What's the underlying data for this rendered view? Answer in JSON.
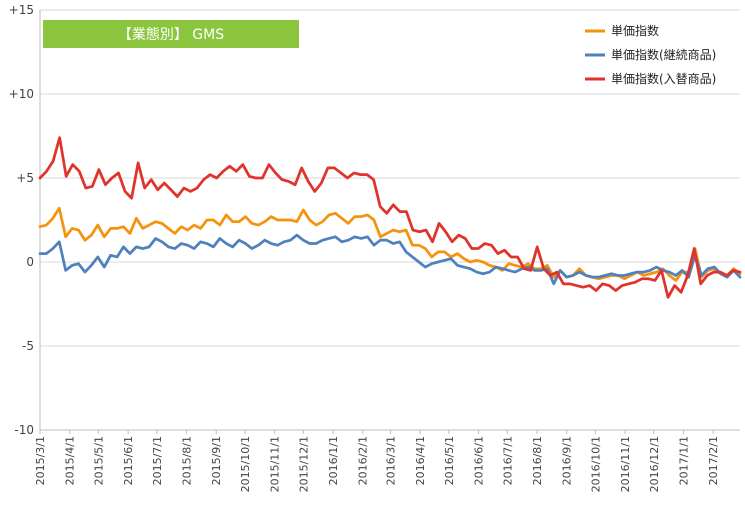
{
  "chart_data": {
    "type": "line",
    "title": "【業態別】 GMS",
    "title_bg_color": "#8CC63F",
    "ylim": [
      -10,
      15
    ],
    "yticks": [
      {
        "value": 15,
        "label": "+15"
      },
      {
        "value": 10,
        "label": "+10"
      },
      {
        "value": 5,
        "label": "+5"
      },
      {
        "value": 0,
        "label": "0"
      },
      {
        "value": -5,
        "label": "-5"
      },
      {
        "value": -10,
        "label": "-10"
      }
    ],
    "grid": true,
    "legend_position": "top-right",
    "x_start": "2015/3/1",
    "x_end": "2017/3/1",
    "x_ticks": [
      "2015/3/1",
      "2015/4/1",
      "2015/5/1",
      "2015/6/1",
      "2015/7/1",
      "2015/8/1",
      "2015/9/1",
      "2015/10/1",
      "2015/11/1",
      "2015/12/1",
      "2016/1/1",
      "2016/2/1",
      "2016/3/1",
      "2016/4/1",
      "2016/5/1",
      "2016/6/1",
      "2016/7/1",
      "2016/8/1",
      "2016/9/1",
      "2016/10/1",
      "2016/11/1",
      "2016/12/1",
      "2017/1/1",
      "2017/2/1"
    ],
    "series": [
      {
        "name": "単価指数",
        "color": "#F5930F",
        "values": [
          2.1,
          2.2,
          2.6,
          3.2,
          1.5,
          2.0,
          1.9,
          1.3,
          1.6,
          2.2,
          1.5,
          2.0,
          2.0,
          2.1,
          1.7,
          2.6,
          2.0,
          2.2,
          2.4,
          2.3,
          2.0,
          1.7,
          2.1,
          1.9,
          2.2,
          2.0,
          2.5,
          2.5,
          2.2,
          2.8,
          2.4,
          2.4,
          2.7,
          2.3,
          2.2,
          2.4,
          2.7,
          2.5,
          2.5,
          2.5,
          2.4,
          3.1,
          2.5,
          2.2,
          2.4,
          2.8,
          2.9,
          2.6,
          2.3,
          2.7,
          2.7,
          2.8,
          2.5,
          1.5,
          1.7,
          1.9,
          1.8,
          1.9,
          1.0,
          1.0,
          0.8,
          0.3,
          0.6,
          0.6,
          0.3,
          0.5,
          0.2,
          0.0,
          0.1,
          0.0,
          -0.2,
          -0.3,
          -0.5,
          -0.1,
          -0.2,
          -0.3,
          -0.1,
          -0.4,
          -0.4,
          -0.2,
          -0.9,
          -0.5,
          -0.9,
          -0.8,
          -0.4,
          -0.8,
          -0.9,
          -1.0,
          -0.9,
          -0.8,
          -0.8,
          -1.0,
          -0.8,
          -0.6,
          -0.8,
          -0.7,
          -0.6,
          -0.4,
          -0.8,
          -1.1,
          -0.6,
          -0.6,
          0.8,
          -0.9,
          -0.5,
          -0.4,
          -0.7,
          -0.8,
          -0.4,
          -0.7
        ]
      },
      {
        "name": "単価指数(継続商品)",
        "color": "#4F81BD",
        "values": [
          0.5,
          0.5,
          0.8,
          1.2,
          -0.5,
          -0.2,
          -0.1,
          -0.6,
          -0.2,
          0.3,
          -0.3,
          0.4,
          0.3,
          0.9,
          0.5,
          0.9,
          0.8,
          0.9,
          1.4,
          1.2,
          0.9,
          0.8,
          1.1,
          1.0,
          0.8,
          1.2,
          1.1,
          0.9,
          1.4,
          1.1,
          0.9,
          1.3,
          1.1,
          0.8,
          1.0,
          1.3,
          1.1,
          1.0,
          1.2,
          1.3,
          1.6,
          1.3,
          1.1,
          1.1,
          1.3,
          1.4,
          1.5,
          1.2,
          1.3,
          1.5,
          1.4,
          1.5,
          1.0,
          1.3,
          1.3,
          1.1,
          1.2,
          0.6,
          0.3,
          0.0,
          -0.3,
          -0.1,
          0.0,
          0.1,
          0.2,
          -0.2,
          -0.3,
          -0.4,
          -0.6,
          -0.7,
          -0.6,
          -0.3,
          -0.4,
          -0.5,
          -0.6,
          -0.4,
          -0.3,
          -0.5,
          -0.5,
          -0.4,
          -1.3,
          -0.5,
          -0.9,
          -0.8,
          -0.6,
          -0.8,
          -0.9,
          -0.9,
          -0.8,
          -0.7,
          -0.8,
          -0.8,
          -0.7,
          -0.6,
          -0.6,
          -0.5,
          -0.3,
          -0.5,
          -0.6,
          -0.8,
          -0.5,
          -0.9,
          0.4,
          -0.8,
          -0.4,
          -0.3,
          -0.7,
          -0.9,
          -0.5,
          -0.9
        ]
      },
      {
        "name": "単価指数(入替商品)",
        "color": "#E0332B",
        "values": [
          5.0,
          5.4,
          6.0,
          7.4,
          5.1,
          5.8,
          5.4,
          4.4,
          4.5,
          5.5,
          4.6,
          5.0,
          5.3,
          4.2,
          3.8,
          5.9,
          4.4,
          4.9,
          4.3,
          4.7,
          4.3,
          3.9,
          4.4,
          4.2,
          4.4,
          4.9,
          5.2,
          5.0,
          5.4,
          5.7,
          5.4,
          5.8,
          5.1,
          5.0,
          5.0,
          5.8,
          5.3,
          4.9,
          4.8,
          4.6,
          5.6,
          4.8,
          4.2,
          4.7,
          5.6,
          5.6,
          5.3,
          5.0,
          5.3,
          5.2,
          5.2,
          4.9,
          3.3,
          2.9,
          3.4,
          3.0,
          3.0,
          1.9,
          1.8,
          1.9,
          1.2,
          2.3,
          1.8,
          1.2,
          1.6,
          1.4,
          0.8,
          0.8,
          1.1,
          1.0,
          0.5,
          0.7,
          0.3,
          0.3,
          -0.4,
          -0.5,
          0.9,
          -0.4,
          -0.8,
          -0.6,
          -1.3,
          -1.3,
          -1.4,
          -1.5,
          -1.4,
          -1.7,
          -1.3,
          -1.4,
          -1.7,
          -1.4,
          -1.3,
          -1.2,
          -1.0,
          -1.0,
          -1.1,
          -0.5,
          -2.1,
          -1.4,
          -1.8,
          -0.8,
          0.8,
          -1.3,
          -0.8,
          -0.6,
          -0.6,
          -0.8,
          -0.5,
          -0.6
        ]
      }
    ]
  }
}
